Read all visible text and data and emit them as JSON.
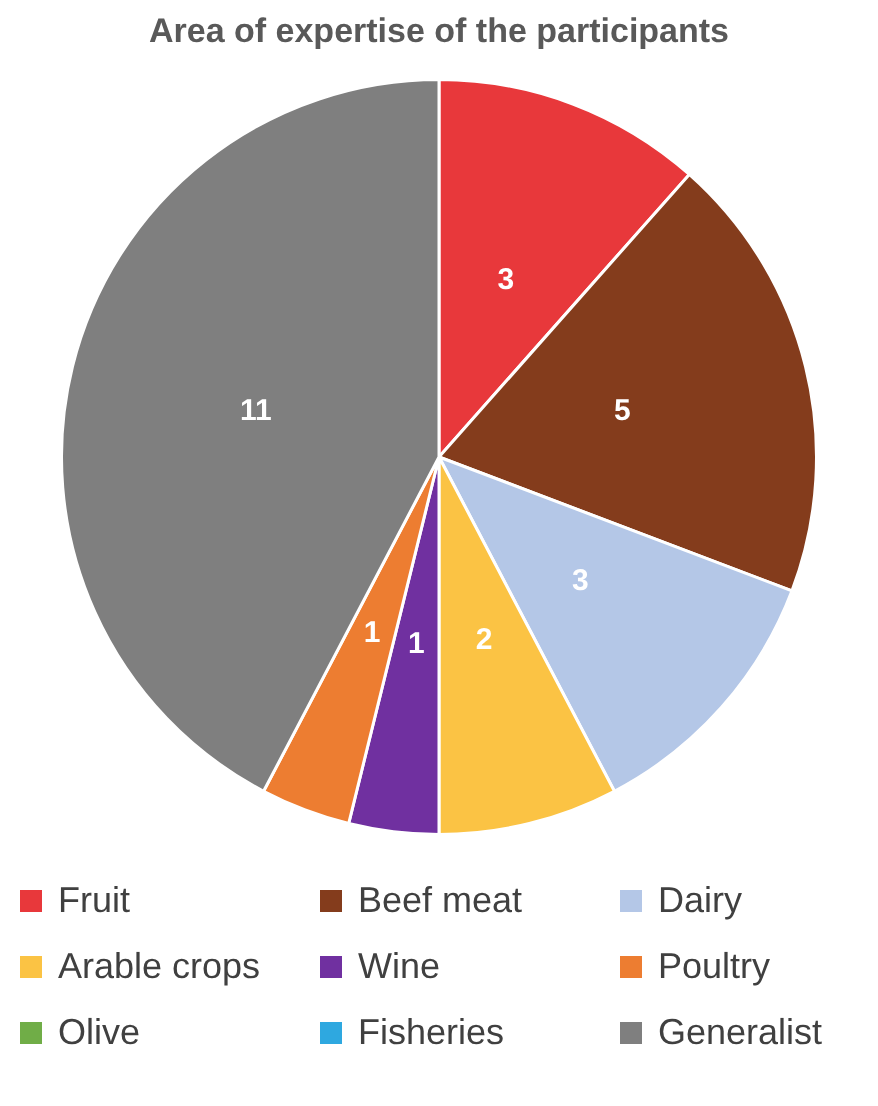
{
  "chart_data": {
    "type": "pie",
    "title": "Area of expertise of the participants",
    "categories": [
      "Fruit",
      "Beef meat",
      "Dairy",
      "Arable crops",
      "Wine",
      "Poultry",
      "Olive",
      "Fisheries",
      "Generalist"
    ],
    "values": [
      3,
      5,
      3,
      2,
      1,
      1,
      0,
      0,
      11
    ],
    "colors": [
      "#e8383b",
      "#843c1c",
      "#b4c7e7",
      "#fbc344",
      "#7030a0",
      "#ed7d31",
      "#70ad47",
      "#2ea8e0",
      "#7f7f7f"
    ],
    "data_labels": true,
    "legend": "bottom"
  }
}
